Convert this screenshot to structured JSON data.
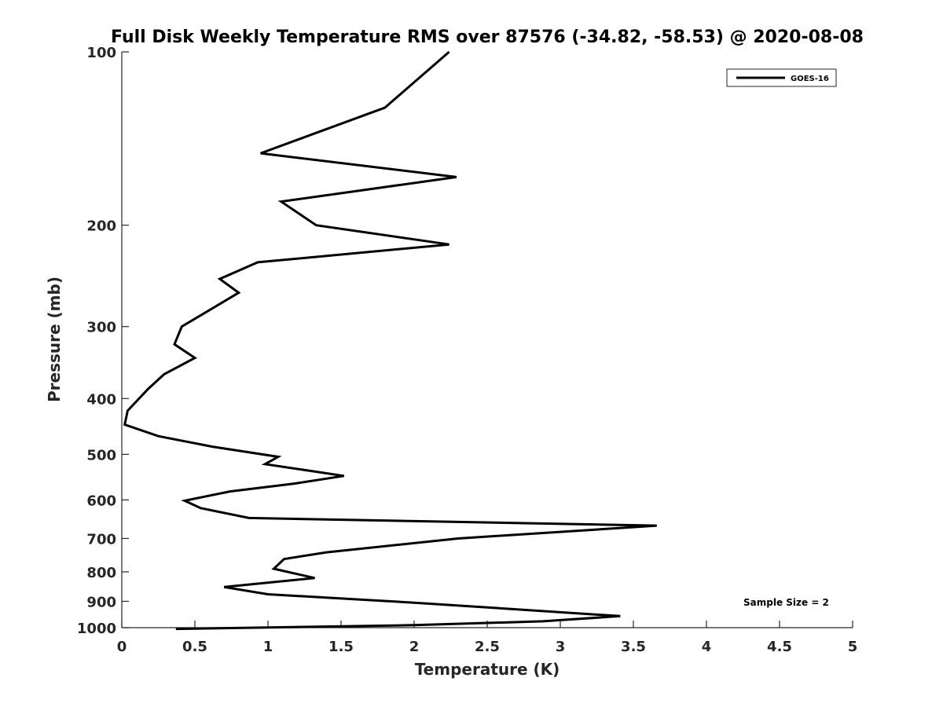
{
  "chart_data": {
    "type": "line",
    "title": "Full Disk Weekly Temperature RMS over 87576 (-34.82, -58.53) @ 2020-08-08",
    "xlabel": "Temperature (K)",
    "ylabel": "Pressure (mb)",
    "xlim": [
      0,
      5
    ],
    "ylim": [
      1000,
      100
    ],
    "yscale": "log",
    "x_ticks": [
      0,
      0.5,
      1,
      1.5,
      2,
      2.5,
      3,
      3.5,
      4,
      4.5,
      5
    ],
    "x_tick_labels": [
      "0",
      "0.5",
      "1",
      "1.5",
      "2",
      "2.5",
      "3",
      "3.5",
      "4",
      "4.5",
      "5"
    ],
    "y_ticks": [
      100,
      200,
      300,
      400,
      500,
      600,
      700,
      800,
      900,
      1000
    ],
    "y_tick_labels": [
      "100",
      "200",
      "300",
      "400",
      "500",
      "600",
      "700",
      "800",
      "900",
      "1000"
    ],
    "grid": false,
    "legend_position": "top-right",
    "annotation": "Sample Size = 2",
    "series": [
      {
        "name": "GOES-16",
        "color": "#000000",
        "x": [
          2.24,
          1.8,
          0.95,
          2.29,
          1.09,
          1.33,
          2.24,
          0.93,
          0.67,
          0.8,
          0.41,
          0.36,
          0.5,
          0.29,
          0.18,
          0.04,
          0.02,
          0.25,
          0.62,
          1.07,
          0.98,
          1.52,
          1.18,
          0.74,
          0.43,
          0.54,
          0.87,
          3.66,
          2.3,
          1.4,
          1.11,
          1.04,
          1.32,
          0.7,
          1.0,
          2.0,
          3.41,
          2.88,
          2.0,
          0.37
        ],
        "y": [
          100,
          125,
          150,
          165,
          182,
          200,
          216,
          232,
          248,
          262,
          300,
          322,
          340,
          363,
          385,
          420,
          444,
          465,
          485,
          505,
          520,
          545,
          562,
          580,
          602,
          620,
          645,
          665,
          700,
          740,
          760,
          790,
          820,
          850,
          875,
          905,
          955,
          975,
          990,
          1005
        ]
      }
    ]
  }
}
